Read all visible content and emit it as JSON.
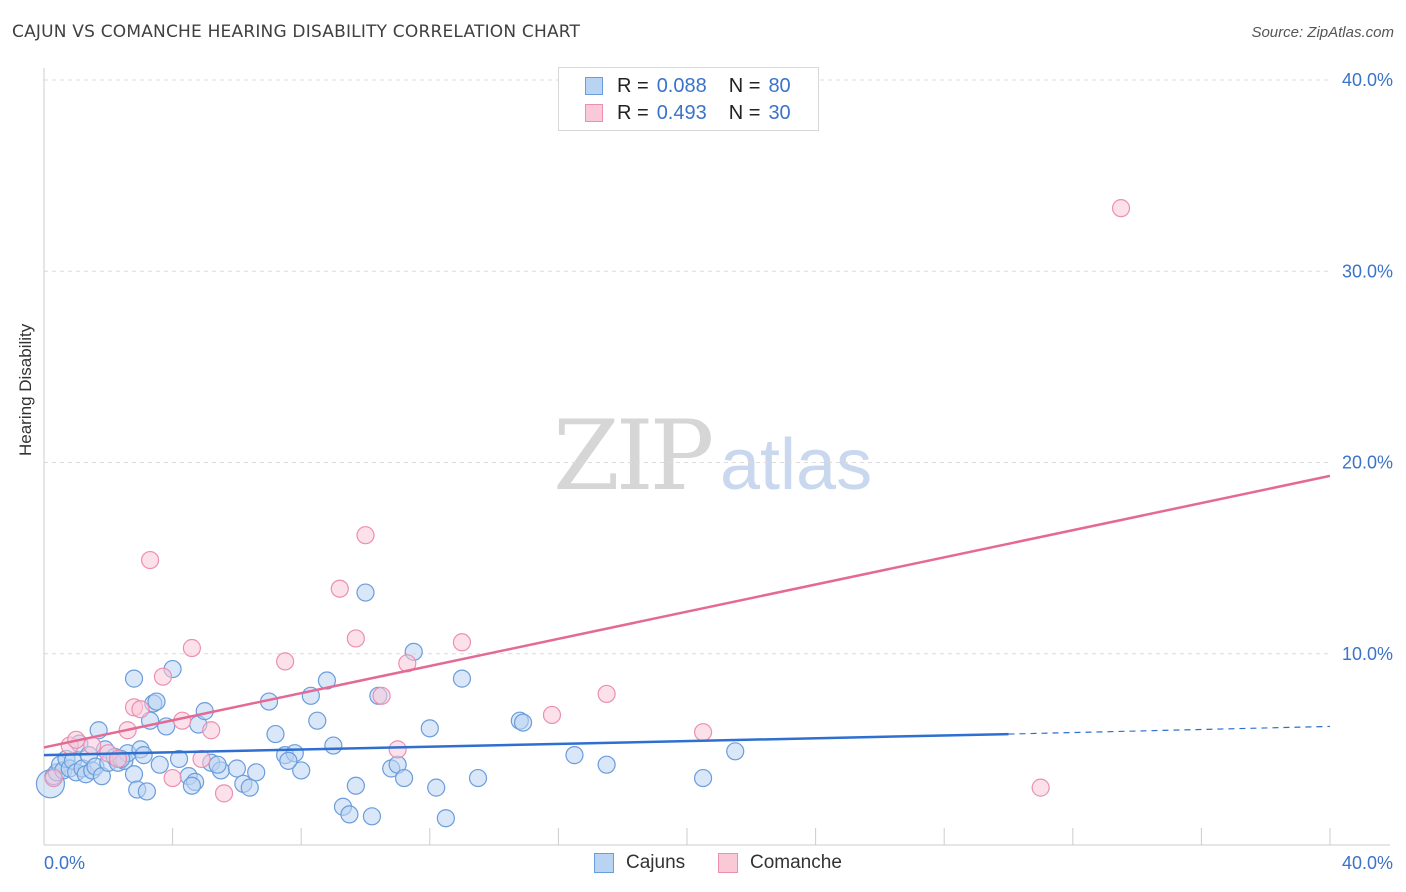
{
  "title": "CAJUN VS COMANCHE HEARING DISABILITY CORRELATION CHART",
  "source": "Source: ZipAtlas.com",
  "watermark": {
    "zip": "ZIP",
    "atlas": "atlas"
  },
  "legend": {
    "rows": [
      {
        "r_label": "R =",
        "r_value": "0.088",
        "n_label": "N =",
        "n_value": "80"
      },
      {
        "r_label": "R =",
        "r_value": "0.493",
        "n_label": "N =",
        "n_value": "30"
      }
    ]
  },
  "bottom_legend": [
    "Cajuns",
    "Comanche"
  ],
  "colors": {
    "cajuns_fill": "#b9d3f3",
    "cajuns_stroke": "#6a9ddc",
    "cajuns_line": "#2e6fd0",
    "comanche_fill": "#f9c9d8",
    "comanche_stroke": "#ec8fb0",
    "comanche_line": "#e46a93",
    "tick_label": "#3a73c9",
    "grid": "#dcdcdc"
  },
  "chart_data": {
    "type": "scatter",
    "title": "CAJUN VS COMANCHE HEARING DISABILITY CORRELATION CHART",
    "xlabel": "",
    "ylabel": "Hearing Disability",
    "xlim": [
      0,
      40
    ],
    "ylim": [
      0,
      40
    ],
    "x_tick_labels": [
      "0.0%",
      "40.0%"
    ],
    "y_tick_labels": [
      "10.0%",
      "20.0%",
      "30.0%",
      "40.0%"
    ],
    "y_ticks": [
      10,
      20,
      30,
      40
    ],
    "grid": true,
    "legend_position": "top-center",
    "series": [
      {
        "name": "Cajuns",
        "r": 0.088,
        "n": 80,
        "trend": {
          "x0": 0,
          "y0": 4.7,
          "x1": 30,
          "y1": 5.8,
          "dashed_to": 40,
          "dashed_y": 6.2
        },
        "points": [
          [
            0.2,
            3.2
          ],
          [
            0.3,
            3.6
          ],
          [
            0.4,
            3.8
          ],
          [
            0.5,
            4.2
          ],
          [
            0.6,
            3.9
          ],
          [
            0.7,
            4.5
          ],
          [
            0.8,
            4.0
          ],
          [
            0.9,
            4.4
          ],
          [
            1.0,
            3.8
          ],
          [
            1.1,
            5.3
          ],
          [
            1.2,
            4.0
          ],
          [
            1.3,
            3.7
          ],
          [
            1.4,
            4.7
          ],
          [
            1.5,
            3.9
          ],
          [
            1.6,
            4.1
          ],
          [
            1.8,
            3.6
          ],
          [
            1.9,
            5.0
          ],
          [
            2.0,
            4.3
          ],
          [
            2.2,
            4.6
          ],
          [
            2.3,
            4.3
          ],
          [
            2.5,
            4.4
          ],
          [
            2.6,
            4.8
          ],
          [
            2.8,
            3.7
          ],
          [
            2.9,
            2.9
          ],
          [
            3.0,
            5.0
          ],
          [
            3.1,
            4.7
          ],
          [
            3.3,
            6.5
          ],
          [
            3.4,
            7.4
          ],
          [
            3.5,
            7.5
          ],
          [
            3.6,
            4.2
          ],
          [
            3.8,
            6.2
          ],
          [
            4.0,
            9.2
          ],
          [
            4.2,
            4.5
          ],
          [
            4.5,
            3.6
          ],
          [
            4.7,
            3.3
          ],
          [
            4.8,
            6.3
          ],
          [
            5.0,
            7.0
          ],
          [
            5.2,
            4.3
          ],
          [
            5.5,
            3.9
          ],
          [
            6.0,
            4.0
          ],
          [
            6.2,
            3.2
          ],
          [
            6.4,
            3.0
          ],
          [
            7.0,
            7.5
          ],
          [
            7.2,
            5.8
          ],
          [
            7.5,
            4.7
          ],
          [
            7.8,
            4.8
          ],
          [
            8.0,
            3.9
          ],
          [
            8.3,
            7.8
          ],
          [
            8.5,
            6.5
          ],
          [
            8.8,
            8.6
          ],
          [
            9.0,
            5.2
          ],
          [
            9.3,
            2.0
          ],
          [
            9.5,
            1.6
          ],
          [
            9.7,
            3.1
          ],
          [
            10.0,
            13.2
          ],
          [
            10.2,
            1.5
          ],
          [
            10.4,
            7.8
          ],
          [
            10.8,
            4.0
          ],
          [
            11.0,
            4.2
          ],
          [
            11.2,
            3.5
          ],
          [
            11.5,
            10.1
          ],
          [
            12.0,
            6.1
          ],
          [
            12.2,
            3.0
          ],
          [
            12.5,
            1.4
          ],
          [
            13.0,
            8.7
          ],
          [
            13.5,
            3.5
          ],
          [
            14.8,
            6.5
          ],
          [
            14.9,
            6.4
          ],
          [
            16.5,
            4.7
          ],
          [
            17.5,
            4.2
          ],
          [
            20.5,
            3.5
          ],
          [
            21.5,
            4.9
          ],
          [
            2.8,
            8.7
          ],
          [
            1.7,
            6.0
          ],
          [
            2.4,
            4.5
          ],
          [
            3.2,
            2.8
          ],
          [
            4.6,
            3.1
          ],
          [
            5.4,
            4.2
          ],
          [
            6.6,
            3.8
          ],
          [
            7.6,
            4.4
          ]
        ]
      },
      {
        "name": "Comanche",
        "r": 0.493,
        "n": 30,
        "trend": {
          "x0": 0,
          "y0": 5.1,
          "x1": 40,
          "y1": 19.3
        },
        "points": [
          [
            0.3,
            3.5
          ],
          [
            0.8,
            5.2
          ],
          [
            1.0,
            5.5
          ],
          [
            1.5,
            5.2
          ],
          [
            2.0,
            4.8
          ],
          [
            2.3,
            4.5
          ],
          [
            2.6,
            6.0
          ],
          [
            2.8,
            7.2
          ],
          [
            3.0,
            7.1
          ],
          [
            3.3,
            14.9
          ],
          [
            3.7,
            8.8
          ],
          [
            4.0,
            3.5
          ],
          [
            4.3,
            6.5
          ],
          [
            4.6,
            10.3
          ],
          [
            4.9,
            4.5
          ],
          [
            5.2,
            6.0
          ],
          [
            5.6,
            2.7
          ],
          [
            7.5,
            9.6
          ],
          [
            9.2,
            13.4
          ],
          [
            9.7,
            10.8
          ],
          [
            10.0,
            16.2
          ],
          [
            10.5,
            7.8
          ],
          [
            11.0,
            5.0
          ],
          [
            11.3,
            9.5
          ],
          [
            13.0,
            10.6
          ],
          [
            15.8,
            6.8
          ],
          [
            17.5,
            7.9
          ],
          [
            20.5,
            5.9
          ],
          [
            31.0,
            3.0
          ],
          [
            33.5,
            33.3
          ]
        ]
      }
    ]
  }
}
